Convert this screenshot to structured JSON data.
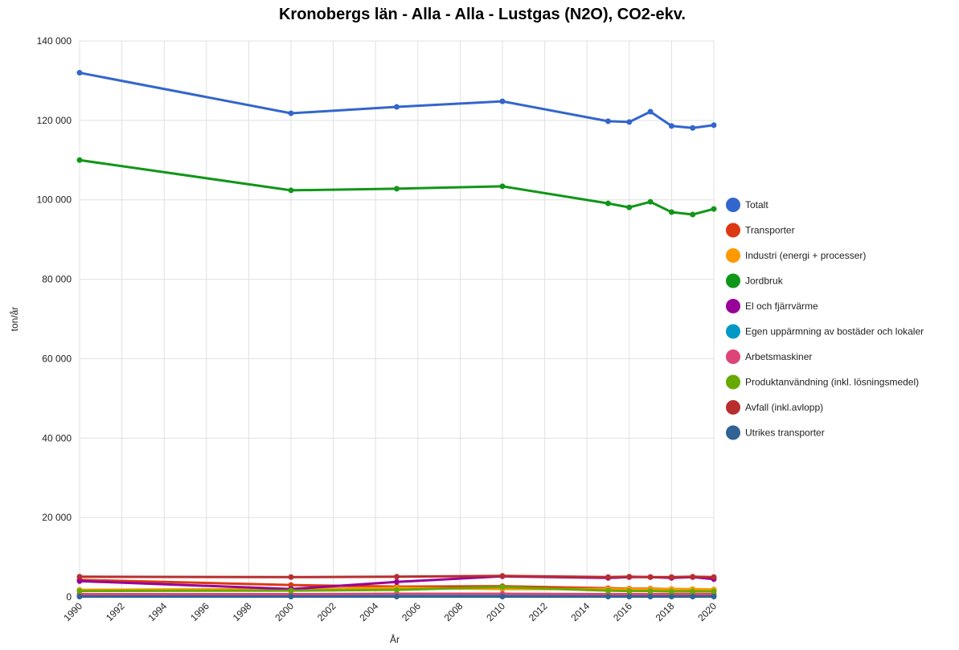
{
  "chart_data": {
    "type": "line",
    "title": "Kronobergs län - Alla - Alla - Lustgas (N2O), CO2-ekv.",
    "x_label": "År",
    "y_label": "ton/år",
    "x": [
      1990,
      2000,
      2005,
      2010,
      2015,
      2016,
      2017,
      2018,
      2019,
      2020
    ],
    "xlim": [
      1990,
      2020
    ],
    "xticks": [
      1990,
      1992,
      1994,
      1996,
      1998,
      2000,
      2002,
      2004,
      2006,
      2008,
      2010,
      2012,
      2014,
      2016,
      2018,
      2020
    ],
    "ylim": [
      0,
      140000
    ],
    "yticks": [
      0,
      {
        "value": 20000,
        "label": "20 000"
      },
      {
        "value": 40000,
        "label": "40 000"
      },
      {
        "value": 60000,
        "label": "60 000"
      },
      {
        "value": 80000,
        "label": "80 000"
      },
      {
        "value": 100000,
        "label": "100 000"
      },
      {
        "value": 120000,
        "label": "120 000"
      },
      {
        "value": 140000,
        "label": "140 000"
      }
    ],
    "grid": true,
    "legend": "right",
    "series": [
      {
        "name": "Totalt",
        "color": "#3366cc",
        "values": [
          132000,
          121800,
          123400,
          124800,
          119800,
          119600,
          122200,
          118600,
          118100,
          118800
        ]
      },
      {
        "name": "Transporter",
        "color": "#dc3912",
        "values": [
          4300,
          3000,
          2600,
          2700,
          2200,
          2100,
          2100,
          2000,
          1900,
          1800
        ]
      },
      {
        "name": "Industri (energi + processer)",
        "color": "#ff9900",
        "values": [
          1800,
          2000,
          2300,
          2000,
          2000,
          2000,
          2000,
          2000,
          2000,
          1900
        ]
      },
      {
        "name": "Jordbruk",
        "color": "#109618",
        "values": [
          110000,
          102400,
          102800,
          103400,
          99100,
          98100,
          99500,
          96900,
          96300,
          97700
        ]
      },
      {
        "name": "El och fjärrvärme",
        "color": "#990099",
        "values": [
          4000,
          2000,
          3800,
          5200,
          4800,
          5000,
          5000,
          4800,
          5000,
          4500
        ]
      },
      {
        "name": "Egen uppärmning av bostäder och lokaler",
        "color": "#0099c6",
        "values": [
          300,
          300,
          300,
          300,
          300,
          300,
          300,
          300,
          300,
          300
        ]
      },
      {
        "name": "Arbetsmaskiner",
        "color": "#dd4477",
        "values": [
          700,
          700,
          800,
          800,
          700,
          700,
          700,
          700,
          700,
          700
        ]
      },
      {
        "name": "Produktanvändning (inkl. lösningsmedel)",
        "color": "#66aa00",
        "values": [
          1500,
          1600,
          1800,
          2500,
          1600,
          1500,
          1500,
          1400,
          1400,
          1400
        ]
      },
      {
        "name": "Avfall (inkl.avlopp)",
        "color": "#b82e2e",
        "values": [
          5100,
          5000,
          5100,
          5300,
          5000,
          5100,
          5000,
          5000,
          5100,
          5000
        ]
      },
      {
        "name": "Utrikes transporter",
        "color": "#316395",
        "values": [
          100,
          100,
          100,
          100,
          100,
          100,
          100,
          100,
          100,
          100
        ]
      }
    ]
  }
}
